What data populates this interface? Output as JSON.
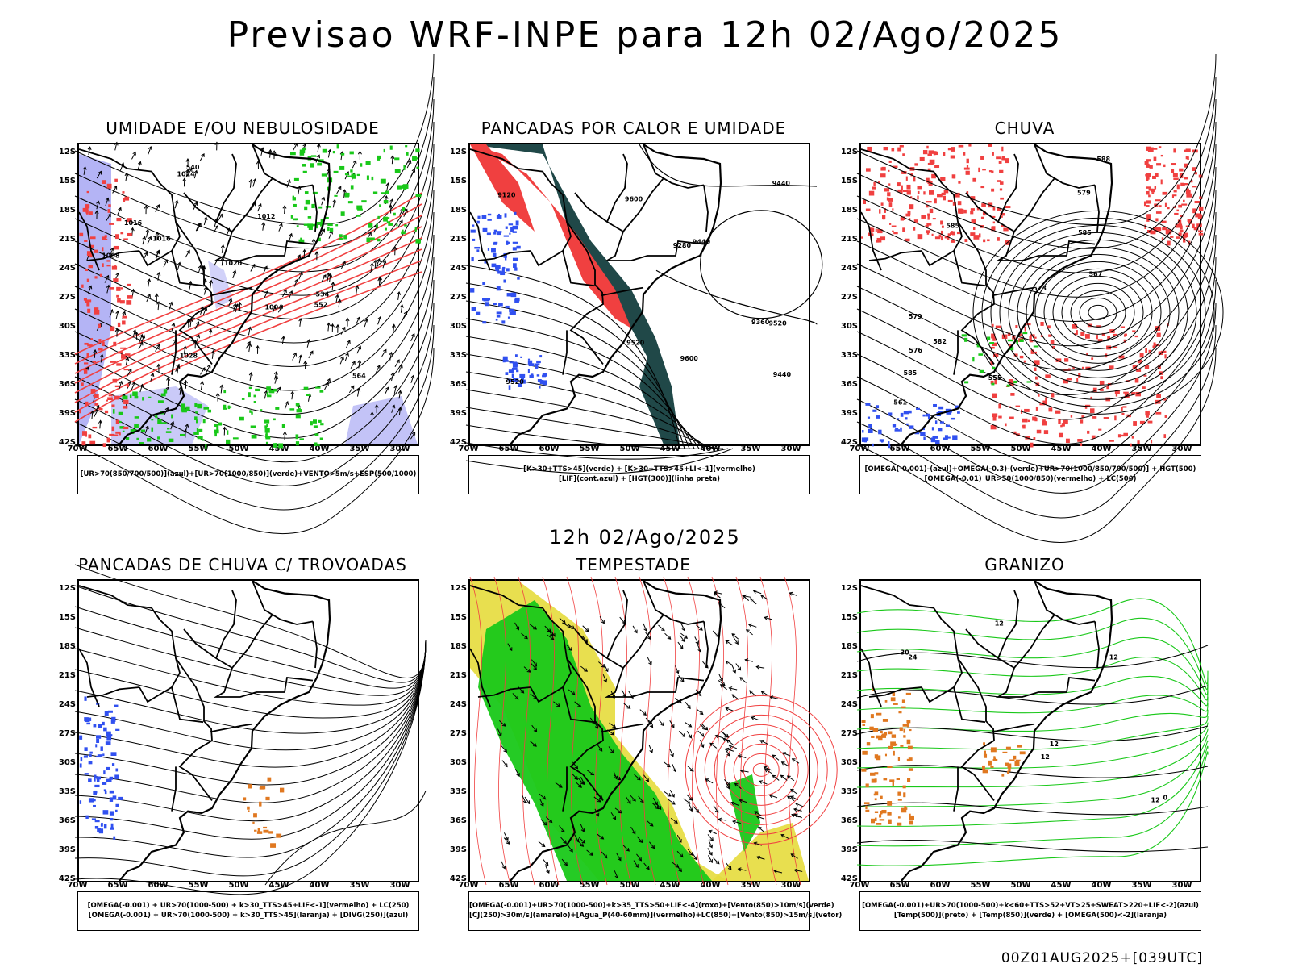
{
  "title": "Previsao WRF-INPE  para 12h 02/Ago/2025",
  "subtitle": "12h 02/Ago/2025",
  "footer": "00Z01AUG2025+[039UTC]",
  "lat_labels": [
    "12S",
    "15S",
    "18S",
    "21S",
    "24S",
    "27S",
    "30S",
    "33S",
    "36S",
    "39S",
    "42S"
  ],
  "lon_labels": [
    "70W",
    "65W",
    "60W",
    "55W",
    "50W",
    "45W",
    "40W",
    "35W",
    "30W"
  ],
  "colors": {
    "frame": "#000000",
    "contour": "#000000",
    "red": "#f04040",
    "green": "#19c819",
    "blue": "#3050f0",
    "lightblue": "#b4b4f5",
    "darkteal": "#204848",
    "yellow": "#e6dc3c",
    "orange": "#e07820"
  },
  "panels": [
    {
      "id": "umidade",
      "title": "UMIDADE E/OU NEBULOSIDADE",
      "legend": [
        "[UR>70(850/700/500)](azul)+[UR>70(1000/850)](verde)+VENTO>5m/s+ESP(500/1000)"
      ],
      "contour_labels": [
        "1016",
        "1016",
        "1020",
        "1024",
        "1028",
        "1012",
        "1008",
        "1004",
        "564",
        "552",
        "540",
        "534"
      ]
    },
    {
      "id": "pancadas-calor",
      "title": "PANCADAS POR CALOR E UMIDADE",
      "legend": [
        "[K>30+TTS>45](verde) + [K>30+TTS>45+LI<-1](vermelho)",
        "[LIF](cont.azul) + [HGT(300)](linha preta)"
      ],
      "contour_labels": [
        "9600",
        "9600",
        "9520",
        "9440",
        "9360",
        "9280",
        "9120",
        "9520",
        "9440",
        "9520",
        "9440"
      ]
    },
    {
      "id": "chuva",
      "title": "CHUVA",
      "legend": [
        "[OMEGA(-0.001)-(azul)+OMEGA(-0.3)-(verde)+UR>70(1000/850/700/500)] + HGT(500)",
        "[OMEGA(-0.01)_UR>50(1000/850)(vermelho) + LC(500)"
      ],
      "contour_labels": [
        "588",
        "585",
        "585",
        "579",
        "573",
        "567",
        "561",
        "555",
        "585",
        "582",
        "579",
        "576"
      ]
    },
    {
      "id": "pancadas-trovoadas",
      "title": "PANCADAS DE CHUVA C/ TROVOADAS",
      "legend": [
        "[OMEGA(-0.001) + UR>70(1000-500) + k>30_TTS>45+LIF<-1](vermelho) + LC(250)",
        "[OMEGA(-0.001) + UR>70(1000-500) + k>30_TTS>45](laranja) + [DIVG(250)](azul)"
      ],
      "contour_labels": []
    },
    {
      "id": "tempestade",
      "title": "TEMPESTADE",
      "legend": [
        "[OMEGA(-0.001)+UR>70(1000-500)+k>35_TTS>50+LIF<-4](roxo)+[Vento(850)>10m/s](verde)",
        "[CJ(250)>30m/s](amarelo)+[Agua_P(40-60mm)](vermelho)+LC(850)+[Vento(850)>15m/s](vetor)"
      ],
      "contour_labels": []
    },
    {
      "id": "granizo",
      "title": "GRANIZO",
      "legend": [
        "[OMEGA(-0.001)+UR>70(1000-500)+k<60+TTS>52+VT>25+SWEAT>220+LIF<-2](azul)",
        "[Temp(500)](preto) + [Temp(850)](verde) + [OMEGA(500)<-2](laranja)"
      ],
      "contour_labels": [
        "12",
        "12",
        "12",
        "12",
        "12",
        "0",
        "24",
        "30"
      ]
    }
  ]
}
